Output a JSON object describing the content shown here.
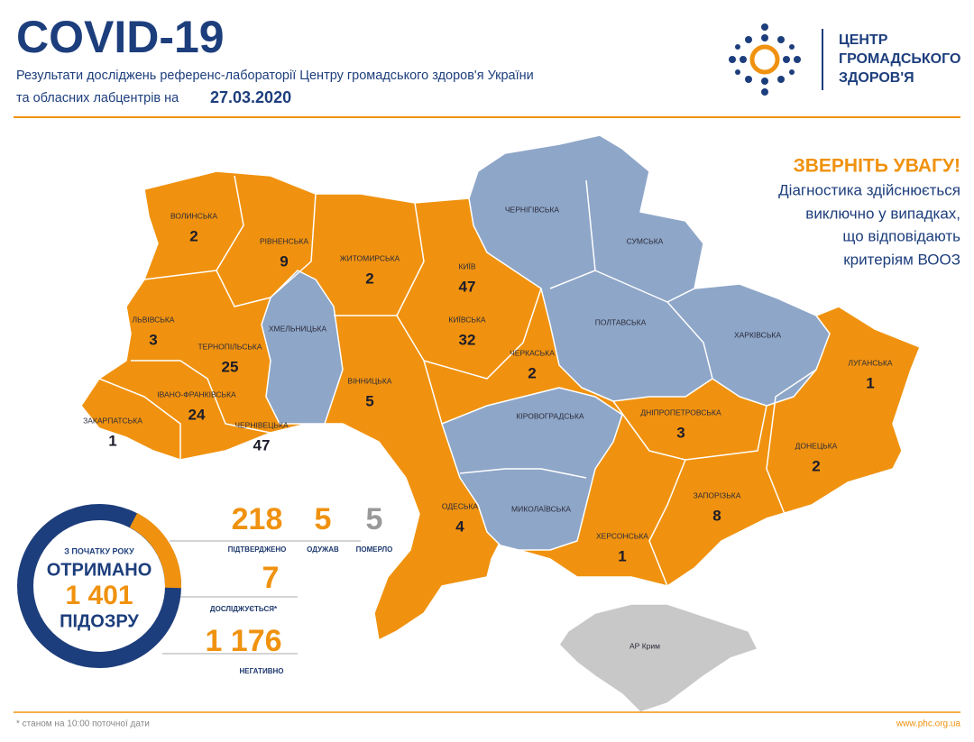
{
  "header": {
    "title": "COVID-19",
    "subtitle_line1": "Результати досліджень референс-лабораторії Центру громадського здоров'я України",
    "subtitle_line2": "та обласних лабцентрів на",
    "date": "27.03.2020"
  },
  "logo": {
    "lines": [
      "ЦЕНТР",
      "ГРОМАДСЬКОГО",
      "ЗДОРОВ'Я"
    ]
  },
  "notice": {
    "title": "ЗВЕРНІТЬ УВАГУ!",
    "lines": [
      "Діагностика здійснюється",
      "виключно у випадках,",
      "що відповідають",
      "критеріям ВООЗ"
    ]
  },
  "regions": [
    {
      "name": "ВОЛИНСЬКА",
      "value": 2
    },
    {
      "name": "РІВНЕНСЬКА",
      "value": 9
    },
    {
      "name": "ЖИТОМИРСЬКА",
      "value": 2
    },
    {
      "name": "КИЇВ",
      "value": 47
    },
    {
      "name": "КИЇВСЬКА",
      "value": 32
    },
    {
      "name": "ЧЕРНІГІВСЬКА"
    },
    {
      "name": "СУМСЬКА"
    },
    {
      "name": "ПОЛТАВСЬКА"
    },
    {
      "name": "ХАРКІВСЬКА"
    },
    {
      "name": "ХМЕЛЬНИЦЬКА"
    },
    {
      "name": "ЛЬВІВСЬКА",
      "value": 3
    },
    {
      "name": "ТЕРНОПІЛЬСЬКА",
      "value": 25
    },
    {
      "name": "ІВАНО-ФРАНКІВСЬКА",
      "value": 24
    },
    {
      "name": "ЗАКАРПАТСЬКА",
      "value": 1
    },
    {
      "name": "ЧЕРНІВЕЦЬКА",
      "value": 47
    },
    {
      "name": "ВІННИЦЬКА",
      "value": 5
    },
    {
      "name": "ЧЕРКАСЬКА",
      "value": 2
    },
    {
      "name": "КІРОВОГРАДСЬКА"
    },
    {
      "name": "ДНІПРОПЕТРОВСЬКА",
      "value": 3
    },
    {
      "name": "ЛУГАНСЬКА",
      "value": 1
    },
    {
      "name": "ДОНЕЦЬКА",
      "value": 2
    },
    {
      "name": "ЗАПОРІЗЬКА",
      "value": 8
    },
    {
      "name": "ХЕРСОНСЬКА",
      "value": 1
    },
    {
      "name": "МИКОЛАЇВСЬКА"
    },
    {
      "name": "ОДЕСЬКА",
      "value": 4
    },
    {
      "name": "АР Крим"
    }
  ],
  "stats": {
    "circle": {
      "top": "З ПОЧАТКУ РОКУ",
      "middle": "ОТРИМАНО",
      "value": "1 401",
      "bottom": "ПІДОЗРУ"
    },
    "confirmed": {
      "value": 218,
      "label": "ПІДТВЕРДЖЕНО"
    },
    "recovered": {
      "value": 5,
      "label": "ОДУЖАВ"
    },
    "died": {
      "value": 5,
      "label": "ПОМЕРЛО"
    },
    "testing": {
      "value": 7,
      "label": "ДОСЛІДЖУЄТЬСЯ*"
    },
    "negative": {
      "value": "1 176",
      "label": "НЕГАТИВНО"
    }
  },
  "footer": {
    "note": "* станом на 10:00 поточної дати",
    "url": "www.phc.org.ua"
  }
}
